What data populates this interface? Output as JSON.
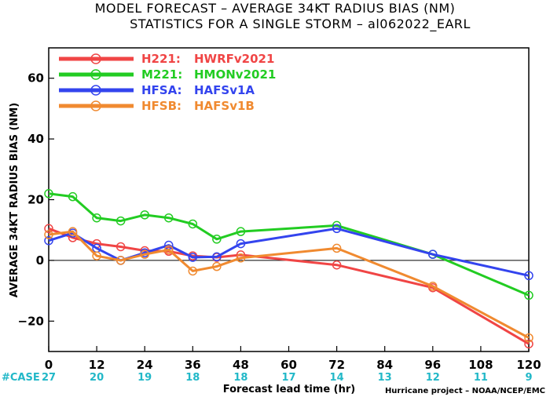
{
  "chart_data": {
    "type": "line",
    "title": "MODEL FORECAST – AVERAGE 34KT RADIUS BIAS (NM)",
    "subtitle": "STATISTICS FOR A SINGLE STORM – al062022_EARL",
    "xlabel": "Forecast lead time (hr)",
    "ylabel": "AVERAGE 34KT RADIUS BIAS (NM)",
    "xlim": [
      0,
      120
    ],
    "ylim": [
      -30,
      70
    ],
    "xticks": [
      "0",
      "12",
      "24",
      "36",
      "48",
      "60",
      "72",
      "84",
      "96",
      "108",
      "120"
    ],
    "yticks": [
      "-20",
      "0",
      "20",
      "40",
      "60"
    ],
    "zero_line": true,
    "legend_position": "top-left",
    "case_label": "#CASE",
    "case_counts": [
      "27",
      "20",
      "19",
      "18",
      "18",
      "17",
      "14",
      "13",
      "12",
      "11",
      "9"
    ],
    "credit": "Hurricane project – NOAA/NCEP/EMC",
    "series": [
      {
        "name": "H221:",
        "desc": "HWRFv2021",
        "color": "#f04545",
        "points": [
          [
            0,
            10.5
          ],
          [
            6,
            7.5
          ],
          [
            12,
            5.5
          ],
          [
            18,
            4.5
          ],
          [
            24,
            3.2
          ],
          [
            30,
            3.0
          ],
          [
            36,
            1.5
          ],
          [
            42,
            1.0
          ],
          [
            48,
            1.8
          ],
          [
            72,
            -1.5
          ],
          [
            96,
            -9.0
          ],
          [
            120,
            -27.5
          ]
        ]
      },
      {
        "name": "M221:",
        "desc": "HMONv2021",
        "color": "#22cc22",
        "points": [
          [
            0,
            22.0
          ],
          [
            6,
            21.0
          ],
          [
            12,
            14.0
          ],
          [
            18,
            13.0
          ],
          [
            24,
            15.0
          ],
          [
            30,
            14.0
          ],
          [
            36,
            12.0
          ],
          [
            42,
            7.0
          ],
          [
            48,
            9.5
          ],
          [
            72,
            11.5
          ],
          [
            96,
            2.0
          ],
          [
            120,
            -11.5
          ]
        ]
      },
      {
        "name": "HFSA:",
        "desc": "HAFSv1A",
        "color": "#3344ee",
        "points": [
          [
            0,
            6.5
          ],
          [
            6,
            9.0
          ],
          [
            12,
            4.0
          ],
          [
            18,
            0.0
          ],
          [
            24,
            2.5
          ],
          [
            30,
            5.0
          ],
          [
            36,
            1.0
          ],
          [
            42,
            1.2
          ],
          [
            48,
            5.5
          ],
          [
            72,
            10.5
          ],
          [
            96,
            2.0
          ],
          [
            120,
            -5.0
          ]
        ]
      },
      {
        "name": "HFSB:",
        "desc": "HAFSv1B",
        "color": "#f08a30",
        "points": [
          [
            0,
            8.5
          ],
          [
            6,
            9.5
          ],
          [
            12,
            1.5
          ],
          [
            18,
            0.0
          ],
          [
            24,
            2.0
          ],
          [
            30,
            3.5
          ],
          [
            36,
            -3.5
          ],
          [
            42,
            -2.0
          ],
          [
            48,
            0.8
          ],
          [
            72,
            4.0
          ],
          [
            96,
            -8.5
          ],
          [
            120,
            -25.5
          ]
        ]
      }
    ],
    "colors": {
      "case_color": "#22b8c8",
      "zero_line": "#000000"
    }
  }
}
